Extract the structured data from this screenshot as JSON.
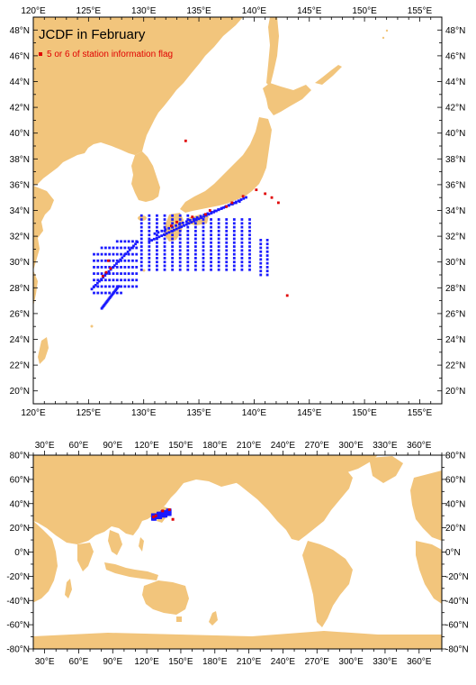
{
  "top_map": {
    "title": "JCDF in February",
    "legend": {
      "marker_color": "#e00000",
      "label": "5 or 6 of station information flag"
    },
    "lon_labels": [
      "120°E",
      "125°E",
      "130°E",
      "135°E",
      "140°E",
      "145°E",
      "150°E",
      "155°E"
    ],
    "lat_labels": [
      "20°N",
      "22°N",
      "24°N",
      "26°N",
      "28°N",
      "30°N",
      "32°N",
      "34°N",
      "36°N",
      "38°N",
      "40°N",
      "42°N",
      "44°N",
      "46°N",
      "48°N"
    ]
  },
  "bottom_map": {
    "lon_labels": [
      "30°E",
      "60°E",
      "90°E",
      "120°E",
      "150°E",
      "180°E",
      "210°E",
      "240°E",
      "270°E",
      "300°E",
      "330°E",
      "360°E"
    ],
    "lat_labels": [
      "80°N",
      "60°N",
      "40°N",
      "20°N",
      "0°N",
      "-20°N",
      "-40°N",
      "-60°N",
      "-80°N"
    ]
  },
  "colors": {
    "land": "#f2c57c",
    "ocean": "#ffffff",
    "station_normal": "#1a1aff",
    "station_flagged": "#e00000"
  }
}
